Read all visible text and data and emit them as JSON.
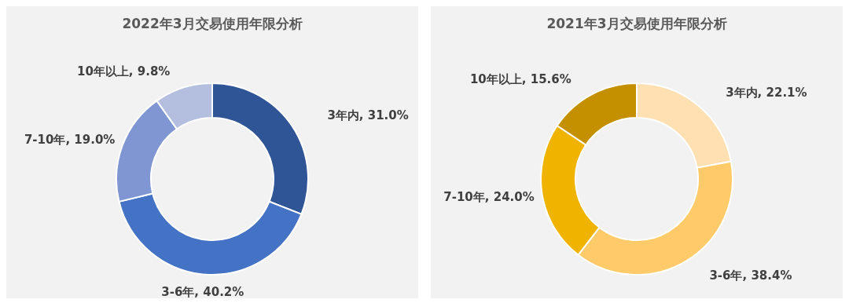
{
  "chart_data": [
    {
      "type": "donut",
      "title": "2022年3月交易使用年限分析",
      "categories": [
        "3年内",
        "3-6年",
        "7-10年",
        "10年以上"
      ],
      "values": [
        31.0,
        40.2,
        19.0,
        9.8
      ],
      "value_labels": [
        "31.0%",
        "40.2%",
        "19.0%",
        "9.8%"
      ],
      "colors": [
        "#2f5597",
        "#4472c4",
        "#7f96d2",
        "#b4bfe0"
      ]
    },
    {
      "type": "donut",
      "title": "2021年3月交易使用年限分析",
      "categories": [
        "3年内",
        "3-6年",
        "7-10年",
        "10年以上"
      ],
      "values": [
        22.1,
        38.4,
        24.0,
        15.6
      ],
      "value_labels": [
        "22.1%",
        "38.4%",
        "24.0%",
        "15.6%"
      ],
      "colors": [
        "#ffe0b3",
        "#ffca6a",
        "#f0b400",
        "#c49000"
      ]
    }
  ]
}
